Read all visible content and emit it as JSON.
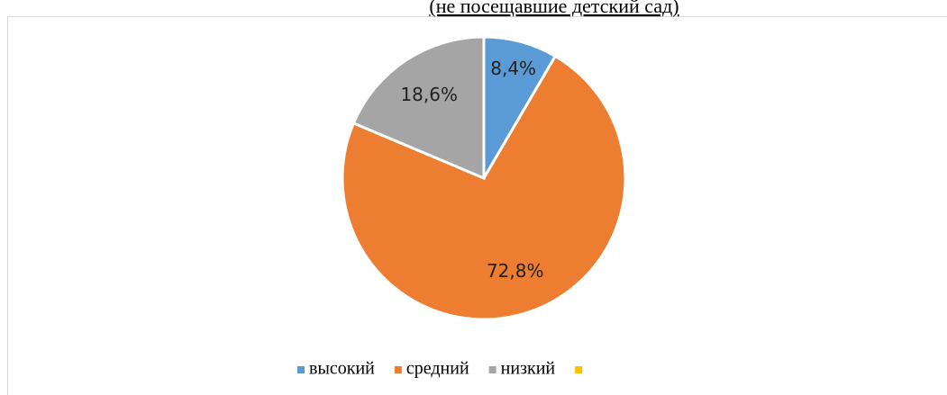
{
  "chart_data": {
    "type": "pie",
    "title": "(не посещавшие детский сад)",
    "categories": [
      "высокий",
      "средний",
      "низкий",
      null
    ],
    "values": [
      8.4,
      72.8,
      18.6,
      0
    ],
    "value_labels": [
      "8,4%",
      "72,8%",
      "18,6%",
      null
    ],
    "colors": [
      "#5b9bd5",
      "#ed7d31",
      "#a5a5a5",
      "#ffc000"
    ],
    "legend": "bottom"
  }
}
